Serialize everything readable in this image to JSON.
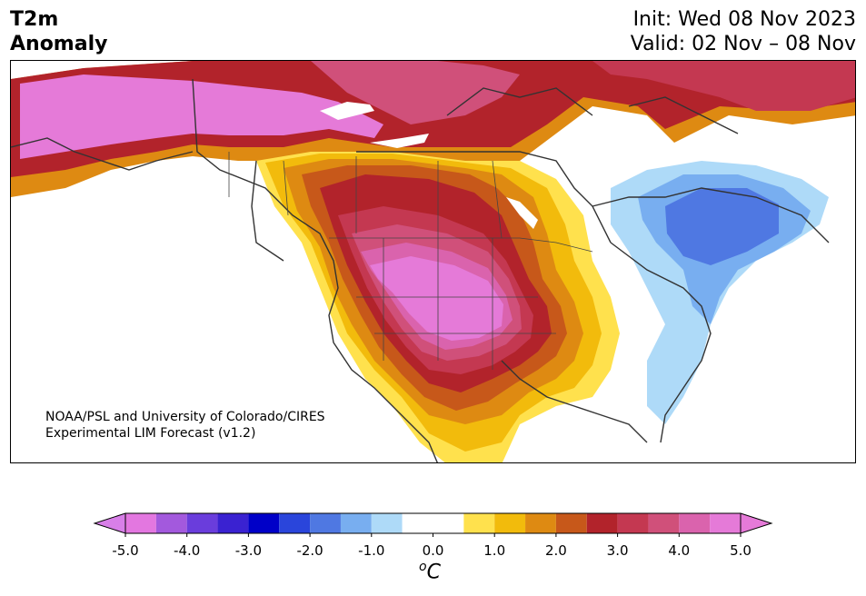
{
  "header": {
    "title_line1": "T2m",
    "title_line2": "Anomaly",
    "init_text": "Init: Wed 08 Nov 2023",
    "valid_text": "Valid: 02 Nov – 08 Nov"
  },
  "map": {
    "credit_line1": "NOAA/PSL and University of Colorado/CIRES",
    "credit_line2": "Experimental LIM Forecast (v1.2)",
    "region": "North America",
    "pattern": "warm anomaly over western/central US and Canada, cool anomaly over Quebec and eastern US"
  },
  "colorbar": {
    "unit_symbol": "o",
    "unit_letter": "C",
    "tick_labels": [
      "-5.0",
      "-4.0",
      "-3.0",
      "-2.0",
      "-1.0",
      "0.0",
      "1.0",
      "2.0",
      "3.0",
      "4.0",
      "5.0"
    ],
    "bins": [
      -5.0,
      -4.5,
      -4.0,
      -3.5,
      -3.0,
      -2.5,
      -2.0,
      -1.5,
      -1.0,
      -0.5,
      0.5,
      1.0,
      1.5,
      2.0,
      2.5,
      3.0,
      3.5,
      4.0,
      4.5,
      5.0
    ],
    "colors": [
      "#e377e0",
      "#a359dd",
      "#6a3ddc",
      "#3a22d1",
      "#0000c8",
      "#2a45db",
      "#4f78e2",
      "#78aef0",
      "#aedaf8",
      "#ffffff",
      "#ffe14d",
      "#f2bb0c",
      "#de8a12",
      "#c7581a",
      "#b2232b",
      "#c43851",
      "#d0507a",
      "#da63ad",
      "#e57ad8"
    ],
    "under_color": "#d87fe8",
    "over_color": "#e57ad8"
  }
}
